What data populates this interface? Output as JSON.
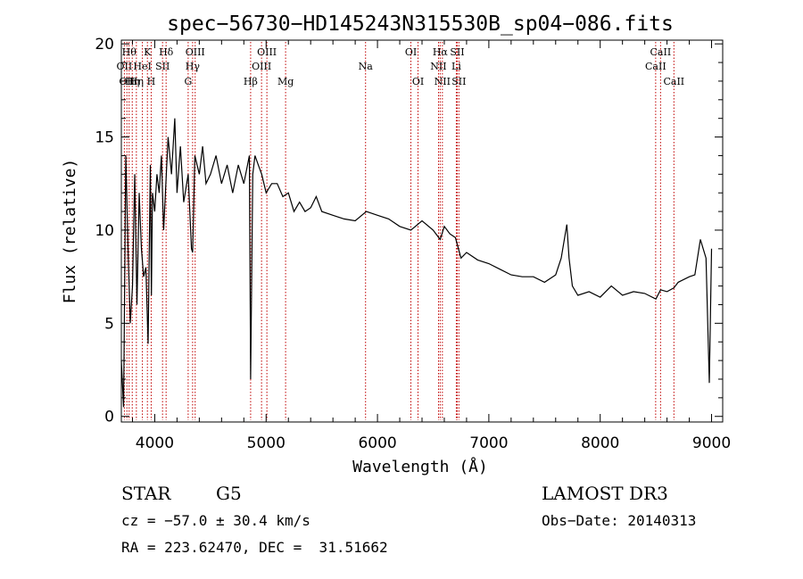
{
  "chart_data": {
    "type": "line",
    "title": "spec−56730−HD145243N315530B_sp04−086.fits",
    "xlabel": "Wavelength (Å)",
    "ylabel": "Flux (relative)",
    "xlim": [
      3700,
      9100
    ],
    "ylim": [
      -0.3,
      20.2
    ],
    "xticks": [
      4000,
      5000,
      6000,
      7000,
      8000,
      9000
    ],
    "yticks": [
      0,
      5,
      10,
      15,
      20
    ],
    "series": [
      {
        "x": [
          3700,
          3720,
          3740,
          3760,
          3780,
          3800,
          3820,
          3840,
          3860,
          3880,
          3900,
          3920,
          3940,
          3960,
          3970,
          3980,
          4000,
          4020,
          4040,
          4060,
          4080,
          4100,
          4120,
          4150,
          4180,
          4200,
          4230,
          4260,
          4300,
          4330,
          4340,
          4360,
          4400,
          4430,
          4460,
          4500,
          4550,
          4600,
          4650,
          4700,
          4750,
          4800,
          4850,
          4861,
          4880,
          4900,
          4930,
          4960,
          5000,
          5050,
          5100,
          5150,
          5200,
          5250,
          5300,
          5350,
          5400,
          5450,
          5500,
          5600,
          5700,
          5800,
          5900,
          6000,
          6100,
          6200,
          6300,
          6400,
          6500,
          6563,
          6600,
          6650,
          6700,
          6750,
          6800,
          6900,
          7000,
          7100,
          7200,
          7300,
          7400,
          7500,
          7600,
          7650,
          7700,
          7720,
          7750,
          7800,
          7900,
          8000,
          8100,
          8200,
          8300,
          8400,
          8500,
          8542,
          8600,
          8662,
          8700,
          8800,
          8850,
          8900,
          8950,
          8980,
          9000
        ],
        "y": [
          3.0,
          0.5,
          14.0,
          9.0,
          5.0,
          7.0,
          13.0,
          6.0,
          12.0,
          9.0,
          7.5,
          8.0,
          3.9,
          13.5,
          6.5,
          12.0,
          11.0,
          13.0,
          12.0,
          14.0,
          10.0,
          12.5,
          15.0,
          13.0,
          16.0,
          12.0,
          14.5,
          11.5,
          13.0,
          9.0,
          8.8,
          14.0,
          13.0,
          14.5,
          12.5,
          13.0,
          14.0,
          12.5,
          13.5,
          12.0,
          13.5,
          12.5,
          14.0,
          2.0,
          13.0,
          14.0,
          13.5,
          13.0,
          12.0,
          12.5,
          12.5,
          11.8,
          12.0,
          11.0,
          11.5,
          11.0,
          11.2,
          11.8,
          11.0,
          10.8,
          10.6,
          10.5,
          11.0,
          10.8,
          10.6,
          10.2,
          10.0,
          10.5,
          10.0,
          9.5,
          10.2,
          9.8,
          9.6,
          8.5,
          8.8,
          8.4,
          8.2,
          7.9,
          7.6,
          7.5,
          7.5,
          7.2,
          7.6,
          8.5,
          10.3,
          8.5,
          7.0,
          6.5,
          6.7,
          6.4,
          7.0,
          6.5,
          6.7,
          6.6,
          6.3,
          6.8,
          6.7,
          6.9,
          7.2,
          7.5,
          7.6,
          9.5,
          8.5,
          1.8,
          9.0
        ]
      }
    ],
    "lines": [
      {
        "x": 3727,
        "label": "OII",
        "row": 2
      },
      {
        "x": 3750,
        "label": "OII",
        "row": 3
      },
      {
        "x": 3770,
        "label": "Hθ",
        "row": 1
      },
      {
        "x": 3798,
        "label": "Hη",
        "row": 3
      },
      {
        "x": 3835,
        "label": "Hη",
        "row": 3
      },
      {
        "x": 3889,
        "label": "HeI",
        "row": 2
      },
      {
        "x": 3934,
        "label": "K",
        "row": 1
      },
      {
        "x": 3968,
        "label": "H",
        "row": 3
      },
      {
        "x": 4070,
        "label": "SII",
        "row": 2
      },
      {
        "x": 4102,
        "label": "Hδ",
        "row": 1
      },
      {
        "x": 4300,
        "label": "G",
        "row": 3
      },
      {
        "x": 4340,
        "label": "Hγ",
        "row": 2
      },
      {
        "x": 4363,
        "label": "OIII",
        "row": 1
      },
      {
        "x": 4861,
        "label": "Hβ",
        "row": 3
      },
      {
        "x": 4959,
        "label": "OIII",
        "row": 2
      },
      {
        "x": 5007,
        "label": "OIII",
        "row": 1
      },
      {
        "x": 5175,
        "label": "Mg",
        "row": 3
      },
      {
        "x": 5893,
        "label": "Na",
        "row": 2
      },
      {
        "x": 6300,
        "label": "OI",
        "row": 1
      },
      {
        "x": 6364,
        "label": "OI",
        "row": 3
      },
      {
        "x": 6548,
        "label": "NII",
        "row": 2
      },
      {
        "x": 6563,
        "label": "Hα",
        "row": 1
      },
      {
        "x": 6583,
        "label": "NII",
        "row": 3
      },
      {
        "x": 6708,
        "label": "Li",
        "row": 2
      },
      {
        "x": 6716,
        "label": "SII",
        "row": 1
      },
      {
        "x": 6731,
        "label": "SII",
        "row": 3
      },
      {
        "x": 8498,
        "label": "CaII",
        "row": 2
      },
      {
        "x": 8542,
        "label": "CaII",
        "row": 1
      },
      {
        "x": 8662,
        "label": "CaII",
        "row": 3
      }
    ],
    "grid": false,
    "line_color": "#000000",
    "marker_line_color": "#c00000"
  },
  "info": {
    "class": "STAR",
    "subclass": "G5",
    "survey": "LAMOST DR3",
    "cz": "cz = −57.0 ± 30.4 km/s",
    "obs_date": "Obs−Date: 20140313",
    "coords": "RA = 223.62470, DEC =  31.51662"
  }
}
